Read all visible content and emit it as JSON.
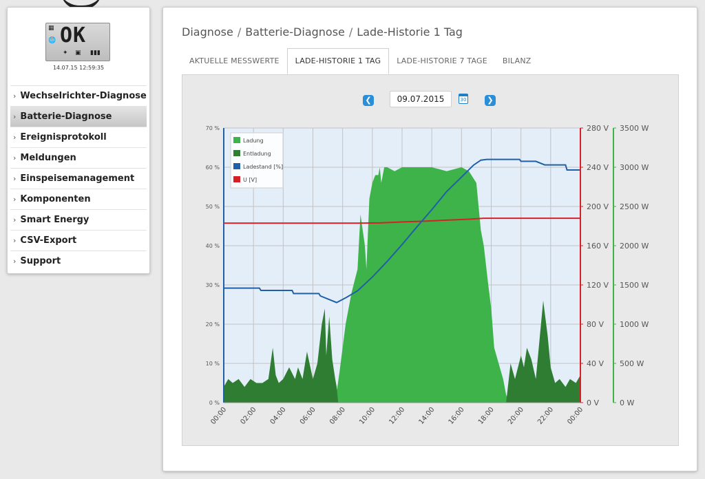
{
  "device": {
    "display_text": "OK",
    "timestamp": "14.07.15 12:59:35"
  },
  "sidebar": {
    "items": [
      {
        "label": "Wechselrichter-Diagnose",
        "active": false
      },
      {
        "label": "Batterie-Diagnose",
        "active": true
      },
      {
        "label": "Ereignisprotokoll",
        "active": false
      },
      {
        "label": "Meldungen",
        "active": false
      },
      {
        "label": "Einspeisemanagement",
        "active": false
      },
      {
        "label": "Komponenten",
        "active": false
      },
      {
        "label": "Smart Energy",
        "active": false
      },
      {
        "label": "CSV-Export",
        "active": false
      },
      {
        "label": "Support",
        "active": false
      }
    ]
  },
  "breadcrumb": {
    "part1": "Diagnose",
    "part2": "Batterie-Diagnose",
    "part3": "Lade-Historie 1 Tag",
    "separator": "/"
  },
  "tabs": [
    {
      "label": "AKTUELLE MESSWERTE",
      "active": false
    },
    {
      "label": "LADE-HISTORIE 1 TAG",
      "active": true
    },
    {
      "label": "LADE-HISTORIE 7 TAGE",
      "active": false
    },
    {
      "label": "BILANZ",
      "active": false
    }
  ],
  "date_picker": {
    "value": "09.07.2015",
    "calendar_label": "30"
  },
  "colors": {
    "ladung": "#3db34a",
    "entladung": "#2e7d32",
    "ladestand": "#1f5fa8",
    "voltage": "#d61f26",
    "accent_blue": "#2b8ed8"
  },
  "chart_data": {
    "type": "area",
    "x_tick_labels": [
      "00:00",
      "02:00",
      "04:00",
      "06:00",
      "08:00",
      "10:00",
      "12:00",
      "14:00",
      "16:00",
      "18:00",
      "20:00",
      "22:00",
      "00:00"
    ],
    "xlim_hours": [
      0,
      24
    ],
    "axes": {
      "left": {
        "ticks": [
          "0 %",
          "10 %",
          "20 %",
          "30 %",
          "40 %",
          "50 %",
          "60 %",
          "70 %"
        ],
        "ylim": [
          0,
          70
        ]
      },
      "right_voltage": {
        "ticks": [
          "0 V",
          "40 V",
          "80 V",
          "120 V",
          "160 V",
          "200 V",
          "240 V",
          "280 V"
        ],
        "ylim": [
          0,
          280
        ]
      },
      "right_power": {
        "ticks": [
          "0 W",
          "500 W",
          "1000 W",
          "1500 W",
          "2000 W",
          "2500 W",
          "3000 W",
          "3500 W"
        ],
        "ylim": [
          0,
          3500
        ]
      }
    },
    "legend": {
      "placement": "top-left",
      "entries": [
        "Ladung",
        "Entladung",
        "Ladestand [%]",
        "U [V]"
      ]
    },
    "series": [
      {
        "name": "Ladestand [%]",
        "axis": "left",
        "x": [
          0,
          2.4,
          2.5,
          4.6,
          4.7,
          6.4,
          6.5,
          7.6,
          8.2,
          9.0,
          10.0,
          11.0,
          12.0,
          13.0,
          14.0,
          15.0,
          16.0,
          16.8,
          17.3,
          17.7,
          18.0,
          19.9,
          20.0,
          21.0,
          21.6,
          22.0,
          23.0,
          23.1,
          24.0
        ],
        "values": [
          29.2,
          29.2,
          28.6,
          28.6,
          27.8,
          27.8,
          27.2,
          25.5,
          26.7,
          28.5,
          32.0,
          36.0,
          40.3,
          44.8,
          49.2,
          53.8,
          57.5,
          60.5,
          61.8,
          62.0,
          62.0,
          62.0,
          61.5,
          61.5,
          60.6,
          60.6,
          60.6,
          59.3,
          59.3
        ]
      },
      {
        "name": "U [V]",
        "axis": "right_voltage",
        "x": [
          0,
          9.0,
          10.5,
          12.0,
          13.5,
          15.0,
          16.5,
          17.5,
          24.0
        ],
        "values": [
          183,
          183,
          183.2,
          184.2,
          185.0,
          186.0,
          187.0,
          188.0,
          188.0
        ]
      },
      {
        "name": "Ladung",
        "axis": "right_power",
        "x": [
          7.5,
          7.8,
          8.2,
          8.6,
          9.0,
          9.2,
          9.5,
          9.6,
          9.8,
          10.0,
          10.2,
          10.4,
          10.5,
          10.6,
          10.8,
          11.0,
          11.5,
          12.0,
          13.0,
          14.0,
          15.0,
          16.0,
          16.5,
          17.0,
          17.3,
          17.5,
          17.8,
          18.0,
          18.2,
          18.5,
          18.8,
          19.0,
          19.2
        ],
        "values": [
          0,
          400,
          1000,
          1400,
          1700,
          2400,
          2000,
          1700,
          2600,
          2800,
          2900,
          2900,
          3000,
          2800,
          3000,
          3000,
          2950,
          3000,
          3000,
          3000,
          2950,
          3000,
          2950,
          2800,
          2200,
          2000,
          1500,
          1200,
          700,
          500,
          300,
          100,
          0
        ]
      },
      {
        "name": "Entladung",
        "axis": "right_power",
        "x": [
          0,
          0.3,
          0.6,
          1.0,
          1.4,
          1.8,
          2.2,
          2.6,
          3.0,
          3.3,
          3.5,
          3.7,
          4.0,
          4.4,
          4.8,
          5.0,
          5.3,
          5.6,
          6.0,
          6.3,
          6.6,
          6.8,
          6.9,
          7.1,
          7.3,
          7.5,
          7.6,
          7.7,
          19.0,
          19.3,
          19.6,
          20.0,
          20.2,
          20.4,
          20.7,
          21.0,
          21.3,
          21.5,
          21.8,
          22.0,
          22.3,
          22.6,
          23.0,
          23.3,
          23.7,
          24.0
        ],
        "values": [
          200,
          300,
          250,
          300,
          200,
          300,
          250,
          250,
          300,
          700,
          350,
          250,
          300,
          450,
          300,
          450,
          300,
          650,
          300,
          500,
          1000,
          1200,
          600,
          1100,
          550,
          300,
          200,
          0,
          0,
          500,
          300,
          600,
          450,
          700,
          550,
          300,
          900,
          1300,
          850,
          450,
          250,
          300,
          200,
          300,
          250,
          350
        ]
      }
    ]
  }
}
